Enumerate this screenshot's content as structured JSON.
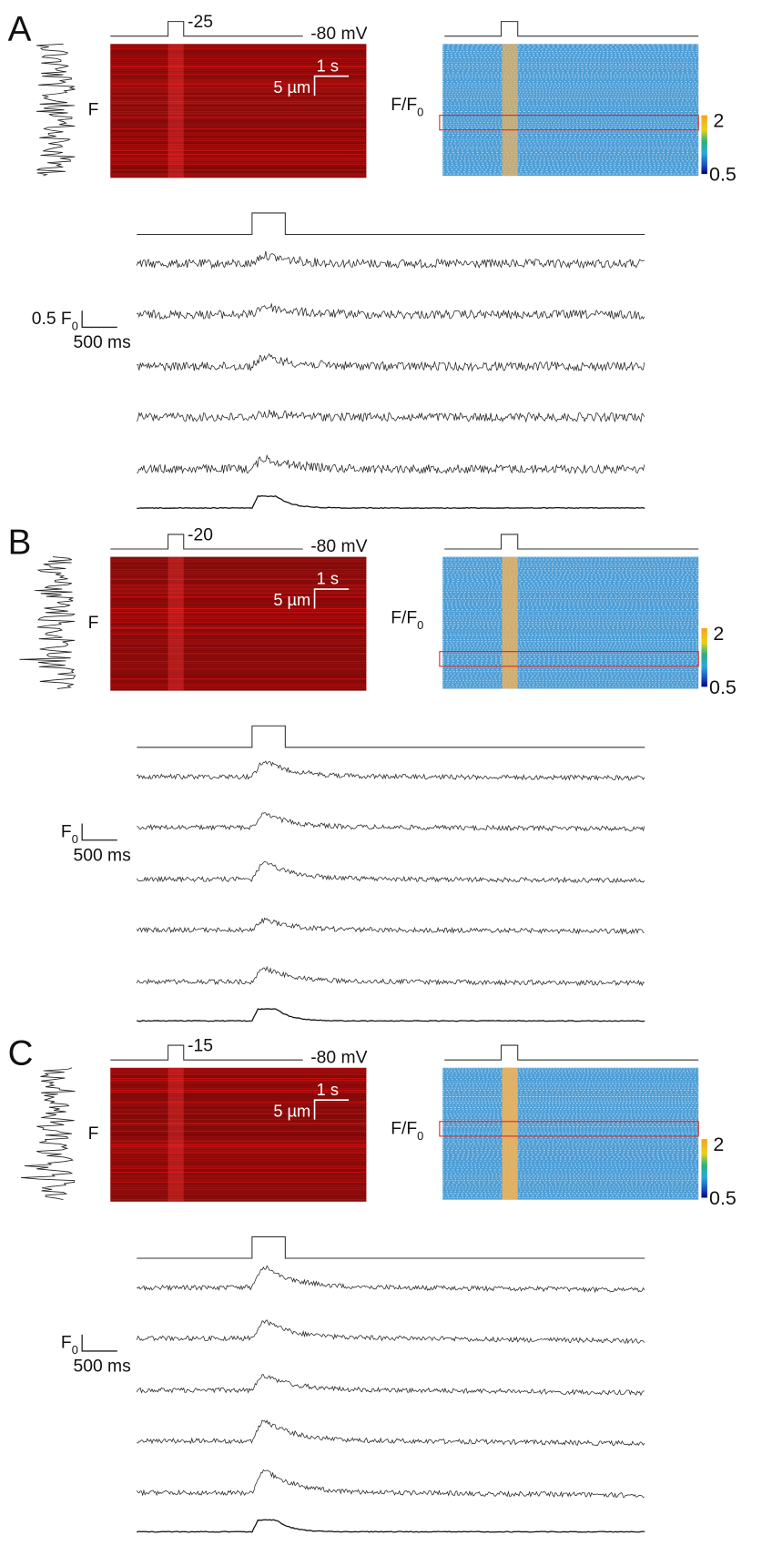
{
  "panels": [
    {
      "label": "A",
      "step_voltage": "-25",
      "holding_voltage": "-80 mV",
      "time_scale": "1 s",
      "space_scale": "5 µm",
      "profile_label": "F",
      "ratio_label": {
        "text": "F/F",
        "subscript": "0"
      },
      "colorbar": {
        "max": "2",
        "min": "0.5"
      },
      "trace_scale": {
        "amplitude": "0.5 F",
        "subscript": "0",
        "time": "500 ms"
      }
    },
    {
      "label": "B",
      "step_voltage": "-20",
      "holding_voltage": "-80 mV",
      "time_scale": "1 s",
      "space_scale": "5 µm",
      "profile_label": "F",
      "ratio_label": {
        "text": "F/F",
        "subscript": "0"
      },
      "colorbar": {
        "max": "2",
        "min": "0.5"
      },
      "trace_scale": {
        "amplitude": "F",
        "subscript": "0",
        "time": "500 ms"
      }
    },
    {
      "label": "C",
      "step_voltage": "-15",
      "holding_voltage": "-80 mV",
      "time_scale": "1 s",
      "space_scale": "5 µm",
      "profile_label": "F",
      "ratio_label": {
        "text": "F/F",
        "subscript": "0"
      },
      "colorbar": {
        "max": "2",
        "min": "0.5"
      },
      "trace_scale": {
        "amplitude": "F",
        "subscript": "0",
        "time": "500 ms"
      }
    }
  ]
}
